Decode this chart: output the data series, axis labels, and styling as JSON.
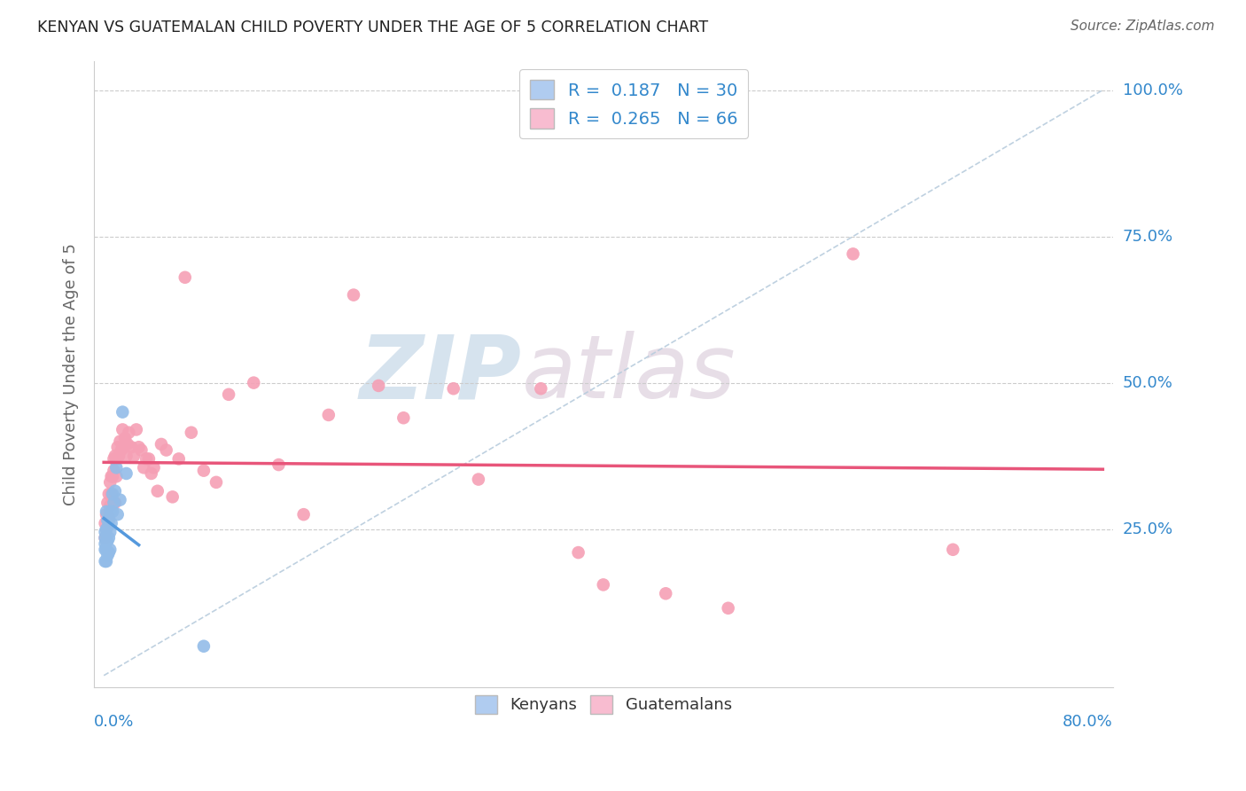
{
  "title": "KENYAN VS GUATEMALAN CHILD POVERTY UNDER THE AGE OF 5 CORRELATION CHART",
  "source": "Source: ZipAtlas.com",
  "ylabel": "Child Poverty Under the Age of 5",
  "kenyan_R": 0.187,
  "kenyan_N": 30,
  "guatemalan_R": 0.265,
  "guatemalan_N": 66,
  "kenyan_color": "#92bce8",
  "guatemalan_color": "#f5a0b5",
  "kenyan_line_color": "#5599dd",
  "guatemalan_line_color": "#e8557a",
  "diagonal_color": "#b8ccdd",
  "legend_kenyan_color": "#b0ccf0",
  "legend_guatemalan_color": "#f8bcd0",
  "title_color": "#222222",
  "source_color": "#666666",
  "tick_color": "#3388cc",
  "watermark_zip_color": "#c5d8e8",
  "watermark_atlas_color": "#d8c8d8",
  "xlim": [
    0.0,
    0.8
  ],
  "ylim": [
    0.0,
    1.05
  ],
  "kenyan_x": [
    0.001,
    0.001,
    0.001,
    0.001,
    0.001,
    0.002,
    0.002,
    0.002,
    0.002,
    0.002,
    0.003,
    0.003,
    0.003,
    0.004,
    0.004,
    0.004,
    0.005,
    0.005,
    0.005,
    0.006,
    0.007,
    0.007,
    0.008,
    0.009,
    0.01,
    0.011,
    0.013,
    0.015,
    0.018,
    0.08
  ],
  "kenyan_y": [
    0.195,
    0.215,
    0.225,
    0.235,
    0.245,
    0.195,
    0.215,
    0.23,
    0.25,
    0.28,
    0.205,
    0.23,
    0.265,
    0.21,
    0.235,
    0.265,
    0.215,
    0.245,
    0.28,
    0.26,
    0.28,
    0.31,
    0.295,
    0.315,
    0.355,
    0.275,
    0.3,
    0.45,
    0.345,
    0.05
  ],
  "guatemalan_x": [
    0.001,
    0.001,
    0.002,
    0.002,
    0.003,
    0.003,
    0.004,
    0.004,
    0.005,
    0.005,
    0.006,
    0.006,
    0.007,
    0.007,
    0.008,
    0.008,
    0.009,
    0.009,
    0.01,
    0.01,
    0.011,
    0.012,
    0.013,
    0.014,
    0.015,
    0.016,
    0.017,
    0.018,
    0.019,
    0.02,
    0.022,
    0.024,
    0.026,
    0.028,
    0.03,
    0.032,
    0.034,
    0.036,
    0.038,
    0.04,
    0.043,
    0.046,
    0.05,
    0.055,
    0.06,
    0.065,
    0.07,
    0.08,
    0.09,
    0.1,
    0.12,
    0.14,
    0.16,
    0.18,
    0.2,
    0.22,
    0.24,
    0.28,
    0.3,
    0.35,
    0.38,
    0.4,
    0.45,
    0.5,
    0.6,
    0.68
  ],
  "guatemalan_y": [
    0.235,
    0.26,
    0.25,
    0.275,
    0.265,
    0.295,
    0.27,
    0.31,
    0.29,
    0.33,
    0.31,
    0.34,
    0.3,
    0.34,
    0.37,
    0.35,
    0.295,
    0.375,
    0.34,
    0.37,
    0.39,
    0.375,
    0.4,
    0.385,
    0.42,
    0.39,
    0.405,
    0.375,
    0.395,
    0.415,
    0.39,
    0.375,
    0.42,
    0.39,
    0.385,
    0.355,
    0.37,
    0.37,
    0.345,
    0.355,
    0.315,
    0.395,
    0.385,
    0.305,
    0.37,
    0.68,
    0.415,
    0.35,
    0.33,
    0.48,
    0.5,
    0.36,
    0.275,
    0.445,
    0.65,
    0.495,
    0.44,
    0.49,
    0.335,
    0.49,
    0.21,
    0.155,
    0.14,
    0.115,
    0.72,
    0.215
  ]
}
